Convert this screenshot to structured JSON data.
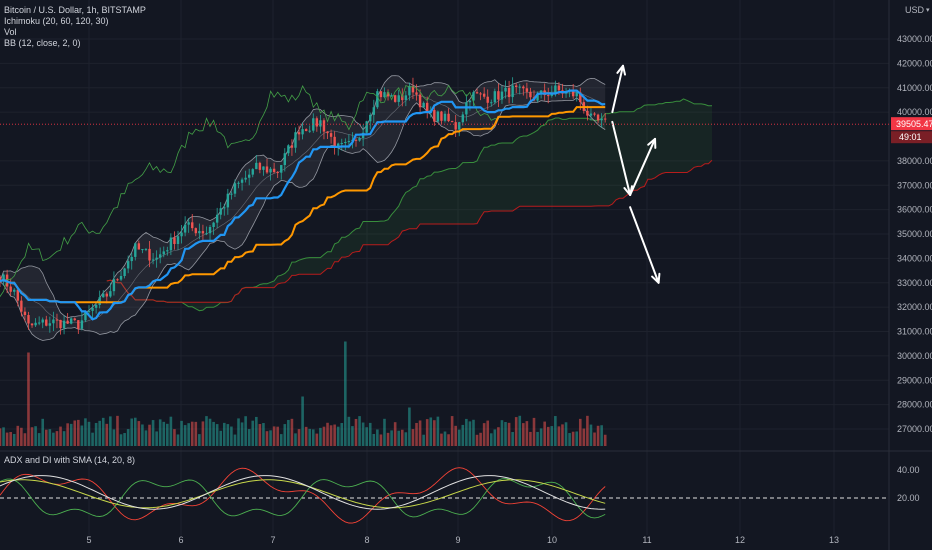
{
  "legend": {
    "symbol": "Bitcoin / U.S. Dollar, 1h, BITSTAMP",
    "ichimoku": "Ichimoku (20, 60, 120, 30)",
    "vol": "Vol",
    "bb": "BB (12, close, 2, 0)",
    "adx": "ADX and DI with SMA (14, 20, 8)"
  },
  "axis": {
    "currency": "USD",
    "price_ticks": [
      "43000.00",
      "42000.00",
      "41000.00",
      "40000.00",
      "38000.00",
      "37000.00",
      "36000.00",
      "35000.00",
      "34000.00",
      "33000.00",
      "32000.00",
      "31000.00",
      "30000.00",
      "29000.00",
      "28000.00",
      "27000.00"
    ],
    "price_tick_values": [
      43000,
      42000,
      41000,
      40000,
      38000,
      37000,
      36000,
      35000,
      34000,
      33000,
      32000,
      31000,
      30000,
      29000,
      28000,
      27000
    ],
    "last_price_label": "39505.47",
    "countdown_label": "49:01",
    "partial_tick_label": "39",
    "adx_ticks": [
      "40.00",
      "20.00"
    ],
    "adx_tick_values": [
      40,
      20
    ],
    "date_ticks": [
      "5",
      "6",
      "7",
      "8",
      "9",
      "10",
      "11",
      "12",
      "13"
    ]
  },
  "colors": {
    "background": "#131722",
    "bull": "#26a69a",
    "bear": "#ef5350",
    "tenkan": "#2196f3",
    "kijun": "#ff9800",
    "span_a": "#388e3c",
    "span_b": "#b71c1c",
    "lagging": "#43a047",
    "bb_band": "#b2b5be",
    "plus_di": "#4caf50",
    "minus_di": "#f44336",
    "adx": "#e0e0e0",
    "adx_sma": "#c6d64a",
    "last_price": "#f23645"
  },
  "chart_data": {
    "type": "candlestick",
    "timeframe": "1h",
    "x_ticks": [
      "5",
      "6",
      "7",
      "8",
      "9",
      "10",
      "11",
      "12",
      "13"
    ],
    "price_range": [
      26700,
      43800
    ],
    "last_price": 39505.47,
    "adx_range": [
      0,
      50
    ],
    "adx_reference_level": 20,
    "close_path": [
      [
        0,
        33300
      ],
      [
        4,
        32600
      ],
      [
        8,
        31200
      ],
      [
        14,
        31400
      ],
      [
        22,
        31300
      ],
      [
        30,
        32500
      ],
      [
        38,
        34400
      ],
      [
        44,
        34000
      ],
      [
        52,
        35300
      ],
      [
        58,
        35100
      ],
      [
        66,
        36900
      ],
      [
        72,
        37700
      ],
      [
        78,
        37600
      ],
      [
        84,
        39300
      ],
      [
        90,
        39600
      ],
      [
        95,
        38500
      ],
      [
        100,
        38700
      ],
      [
        106,
        40800
      ],
      [
        112,
        40500
      ],
      [
        116,
        41000
      ],
      [
        120,
        39900
      ],
      [
        124,
        39800
      ],
      [
        128,
        39400
      ],
      [
        132,
        40700
      ],
      [
        138,
        40600
      ],
      [
        144,
        40900
      ],
      [
        150,
        40600
      ],
      [
        156,
        40900
      ],
      [
        162,
        40700
      ],
      [
        166,
        39700
      ],
      [
        170,
        39500
      ]
    ],
    "projection_arrows": [
      {
        "from": [
          172,
          40000
        ],
        "to": [
          175,
          41900
        ]
      },
      {
        "from": [
          172,
          39600
        ],
        "to": [
          177,
          36600
        ]
      },
      {
        "from": [
          177,
          36600
        ],
        "to": [
          184,
          38900
        ]
      },
      {
        "from": [
          177,
          36100
        ],
        "to": [
          185,
          33000
        ]
      }
    ]
  }
}
